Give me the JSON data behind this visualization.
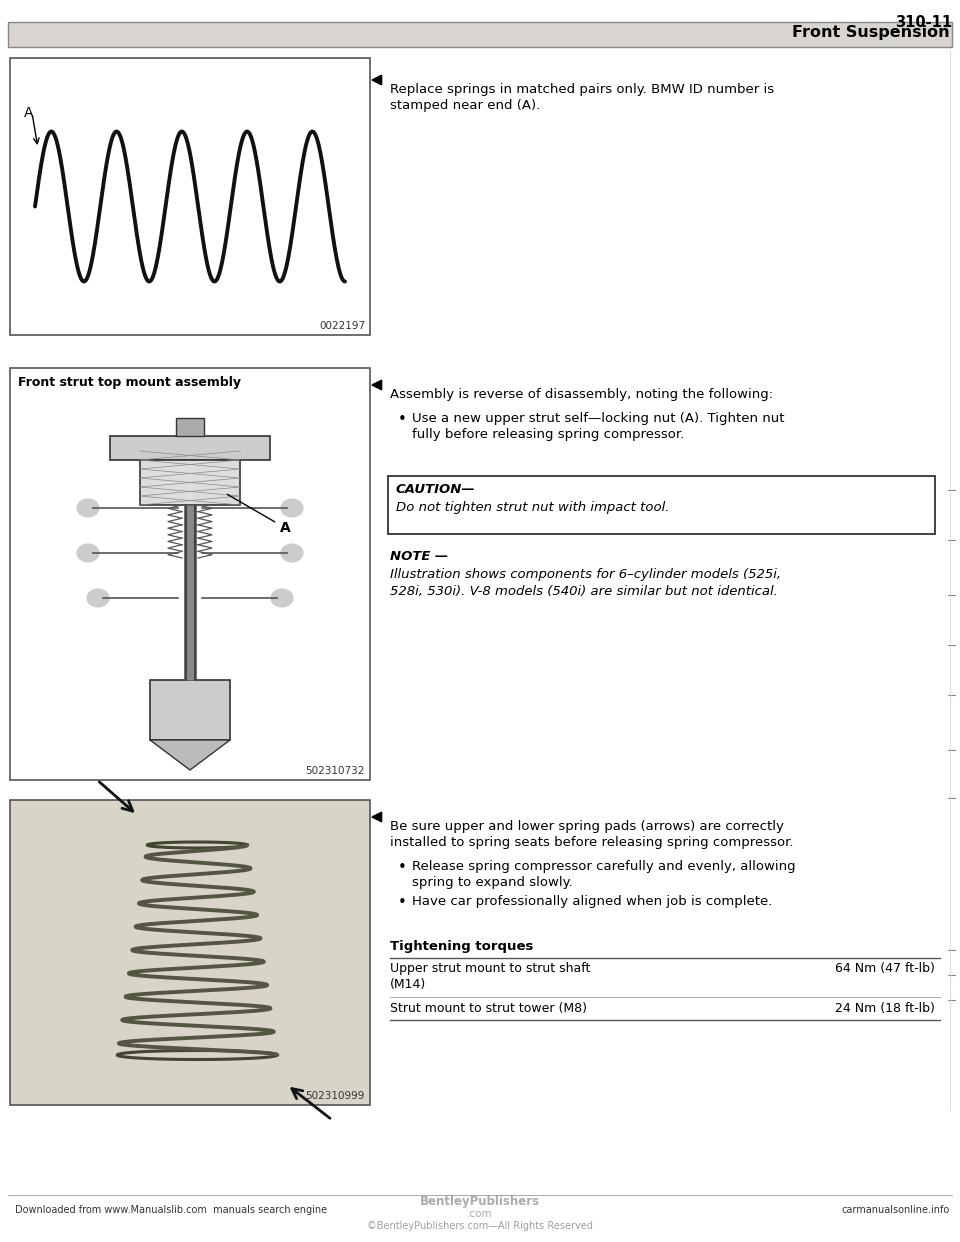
{
  "page_number": "310-11",
  "section_title": "Front Suspension",
  "bg_color": "#ffffff",
  "header_bar_color": "#d8d4d0",
  "text_color": "#000000",
  "image1_caption": "0022197",
  "image2_caption": "502310732",
  "image2_label": "Front strut top mount assembly",
  "image3_caption": "502310999",
  "note1_line1": "Replace springs in matched pairs only. BMW ID number is",
  "note1_line2": "stamped near end (A).",
  "note2_arrow": "Assembly is reverse of disassembly, noting the following:",
  "note2_bullet1_line1": "Use a new upper strut self—locking nut (A). Tighten nut",
  "note2_bullet1_line2": "fully before releasing spring compressor.",
  "caution_title": "CAUTION—",
  "caution_body": "Do not tighten strut nut with impact tool.",
  "note_title": "NOTE —",
  "note_body_line1": "Illustration shows components for 6–cylinder models (525i,",
  "note_body_line2": "528i, 530i). V-8 models (540i) are similar but not identical.",
  "note3_line1": "Be sure upper and lower spring pads (arrows) are correctly",
  "note3_line2": "installed to spring seats before releasing spring compressor.",
  "note3_bullet1_line1": "Release spring compressor carefully and evenly, allowing",
  "note3_bullet1_line2": "spring to expand slowly.",
  "note3_bullet2": "Have car professionally aligned when job is complete.",
  "torque_title": "Tightening torques",
  "torque1_label1": "Upper strut mount to strut shaft",
  "torque1_label2": "(M14)",
  "torque1_value": "64 Nm (47 ft-lb)",
  "torque2_label": "Strut mount to strut tower (M8)",
  "torque2_value": "24 Nm (18 ft-lb)",
  "footer_left": "Downloaded from www.Manualslib.com  manuals search engine",
  "footer_center_top": "BentleyPublishers",
  "footer_center_mid": ".com",
  "footer_center_bot": "©BentleyPublishers.com—All Rights Reserved",
  "footer_right": "carmanualsonline.info",
  "right_margin_ticks": [
    490,
    540,
    595,
    645,
    695,
    750,
    798,
    850,
    950,
    1000,
    1025
  ]
}
